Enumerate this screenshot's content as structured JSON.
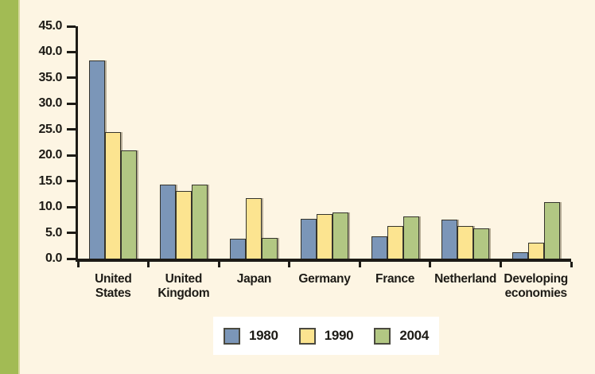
{
  "colors": {
    "background": "#fdf5e3",
    "accent_stripe": "#a2bb54",
    "stripe_edge": "#d6d89e",
    "axis": "#1d1b16",
    "text": "#1d1b16",
    "legend_background": "#ffffff",
    "bar_border": "#35342c",
    "series_1980": "#7b96b8",
    "series_1990": "#fce490",
    "series_2004": "#b2c783"
  },
  "chart_data": {
    "type": "bar",
    "title": "",
    "xlabel": "",
    "ylabel": "",
    "categories": [
      "United States",
      "United Kingdom",
      "Japan",
      "Germany",
      "France",
      "Netherland",
      "Developing economies"
    ],
    "series": [
      {
        "name": "1980",
        "color": "#7b96b8",
        "values": [
          38.3,
          14.3,
          3.8,
          7.7,
          4.3,
          7.6,
          1.2
        ]
      },
      {
        "name": "1990",
        "color": "#fce490",
        "values": [
          24.5,
          13.1,
          11.7,
          8.7,
          6.3,
          6.3,
          3.1
        ]
      },
      {
        "name": "2004",
        "color": "#b2c783",
        "values": [
          21.0,
          14.4,
          4.0,
          9.0,
          8.2,
          5.9,
          11.0
        ]
      }
    ],
    "ylim": [
      0,
      45
    ],
    "ytick_step": 5,
    "ytick_labels": [
      "45.0",
      "40.0",
      "35.0",
      "30.0",
      "25.0",
      "20.0",
      "15.0",
      "10.0",
      "5.0",
      "0.0"
    ],
    "grid": false,
    "legend_position": "bottom"
  }
}
